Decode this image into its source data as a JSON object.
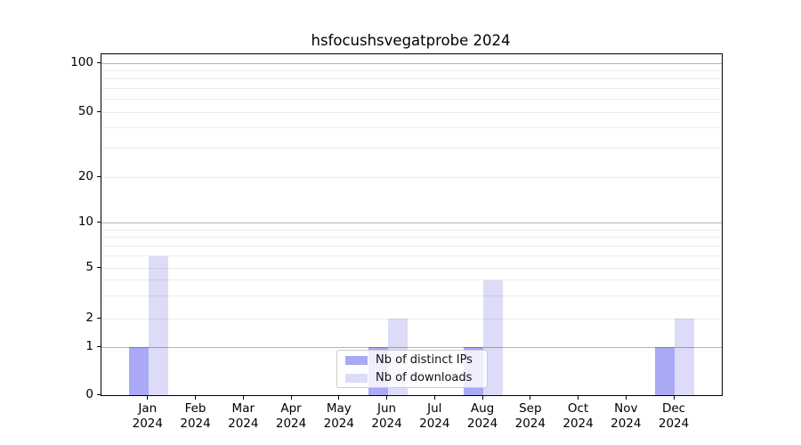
{
  "chart": {
    "title": "hsfocushsvegatprobe 2024",
    "year": "2024",
    "chart_data": {
      "type": "bar",
      "title": "hsfocushsvegatprobe 2024",
      "categories": [
        "Jan 2024",
        "Feb 2024",
        "Mar 2024",
        "Apr 2024",
        "May 2024",
        "Jun 2024",
        "Jul 2024",
        "Aug 2024",
        "Sep 2024",
        "Oct 2024",
        "Nov 2024",
        "Dec 2024"
      ],
      "months": [
        "Jan",
        "Feb",
        "Mar",
        "Apr",
        "May",
        "Jun",
        "Jul",
        "Aug",
        "Sep",
        "Oct",
        "Nov",
        "Dec"
      ],
      "series": [
        {
          "name": "Nb of distinct IPs",
          "color": "#a9a9f5",
          "values": [
            1,
            0,
            0,
            0,
            0,
            1,
            0,
            1,
            0,
            0,
            0,
            1
          ]
        },
        {
          "name": "Nb of downloads",
          "color": "#dcdcf8",
          "values": [
            6,
            0,
            0,
            0,
            0,
            2,
            0,
            4,
            0,
            0,
            0,
            2
          ]
        }
      ],
      "xlabel": "",
      "ylabel": "",
      "yscale": "symlog",
      "ylim": [
        0,
        115
      ],
      "y_ticks": [
        100,
        50,
        20,
        10,
        5,
        2,
        1,
        0
      ],
      "y_minor_ticks": [
        3,
        4,
        6,
        7,
        8,
        9,
        30,
        40,
        60,
        70,
        80,
        90
      ],
      "grid": "horizontal",
      "legend_position": "lower center"
    },
    "colors": {
      "grid_major": "#b4b4b4",
      "grid_minor": "#ececec",
      "spine": "#000000",
      "background": "#ffffff"
    }
  }
}
